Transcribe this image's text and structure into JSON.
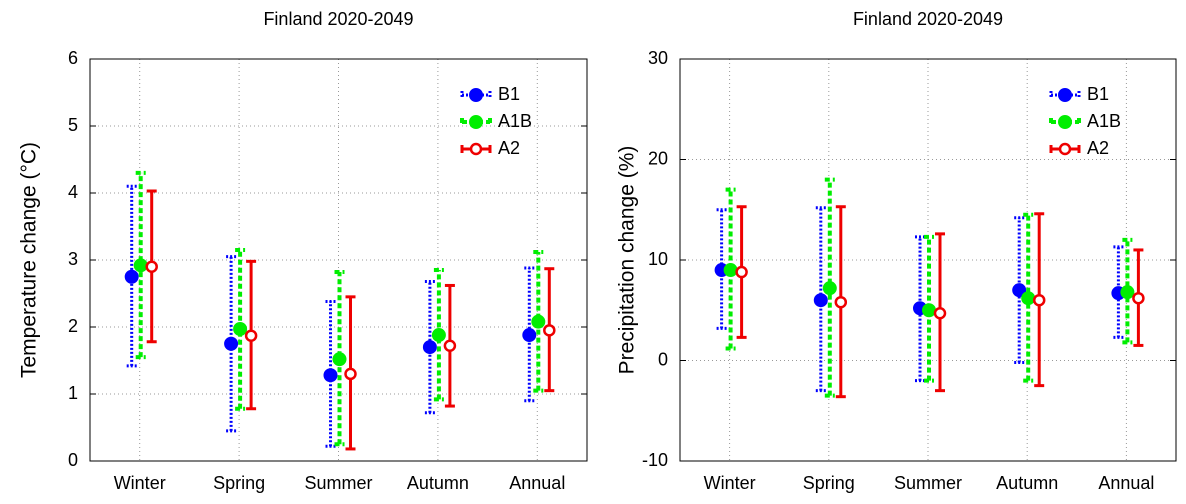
{
  "chart_data": [
    {
      "type": "errorbar",
      "title": "Finland 2020-2049",
      "ylabel": "Temperature change (°C)",
      "categories": [
        "Winter",
        "Spring",
        "Summer",
        "Autumn",
        "Annual"
      ],
      "series": [
        {
          "name": "B1",
          "color": "#0000ff",
          "values": [
            2.75,
            1.75,
            1.28,
            1.7,
            1.88
          ],
          "low": [
            1.42,
            0.45,
            0.22,
            0.72,
            0.9
          ],
          "high": [
            4.1,
            3.05,
            2.38,
            2.68,
            2.88
          ]
        },
        {
          "name": "A1B",
          "color": "#00ee00",
          "values": [
            2.92,
            1.97,
            1.52,
            1.88,
            2.08
          ],
          "low": [
            1.55,
            0.78,
            0.25,
            0.92,
            1.05
          ],
          "high": [
            4.3,
            3.15,
            2.82,
            2.85,
            3.12
          ]
        },
        {
          "name": "A2",
          "color": "#ee0000",
          "values": [
            2.9,
            1.87,
            1.3,
            1.72,
            1.95
          ],
          "low": [
            1.78,
            0.78,
            0.18,
            0.82,
            1.05
          ],
          "high": [
            4.03,
            2.98,
            2.45,
            2.62,
            2.87
          ]
        }
      ],
      "ylim": [
        0,
        6
      ],
      "yticks": [
        0,
        1,
        2,
        3,
        4,
        5,
        6
      ],
      "grid": true,
      "legend": "upper right"
    },
    {
      "type": "errorbar",
      "title": "Finland 2020-2049",
      "ylabel": "Precipitation change (%)",
      "categories": [
        "Winter",
        "Spring",
        "Summer",
        "Autumn",
        "Annual"
      ],
      "series": [
        {
          "name": "B1",
          "color": "#0000ff",
          "values": [
            9,
            6,
            5.2,
            7,
            6.7
          ],
          "low": [
            3.2,
            -3,
            -2,
            -0.2,
            2.3
          ],
          "high": [
            15,
            15.2,
            12.3,
            14.2,
            11.3
          ]
        },
        {
          "name": "A1B",
          "color": "#00ee00",
          "values": [
            9,
            7.2,
            5,
            6.2,
            6.8
          ],
          "low": [
            1.2,
            -3.5,
            -2,
            -2,
            1.8
          ],
          "high": [
            17,
            18,
            12.3,
            14.5,
            12
          ]
        },
        {
          "name": "A2",
          "color": "#ee0000",
          "values": [
            8.8,
            5.8,
            4.7,
            6,
            6.2
          ],
          "low": [
            2.3,
            -3.6,
            -3,
            -2.5,
            1.5
          ],
          "high": [
            15.3,
            15.3,
            12.6,
            14.6,
            11
          ]
        }
      ],
      "ylim": [
        -10,
        30
      ],
      "yticks": [
        -10,
        0,
        10,
        20,
        30
      ],
      "grid": true,
      "legend": "upper right"
    }
  ]
}
